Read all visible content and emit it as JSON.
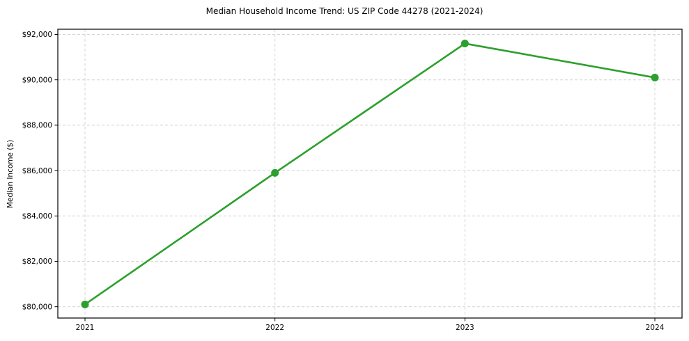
{
  "title": "Median Household Income Trend: US ZIP Code 44278 (2021-2024)",
  "chart_data": {
    "type": "line",
    "title": "Median Household Income Trend: US ZIP Code 44278 (2021-2024)",
    "xlabel": "",
    "ylabel": "Median Income ($)",
    "x": [
      2021,
      2022,
      2023,
      2024
    ],
    "xtick_labels": [
      "2021",
      "2022",
      "2023",
      "2024"
    ],
    "series": [
      {
        "name": "Median Household Income",
        "values": [
          80100,
          85900,
          91600,
          90100
        ]
      }
    ],
    "ylim": [
      79500,
      92230
    ],
    "yticks": [
      80000,
      82000,
      84000,
      86000,
      88000,
      90000,
      92000
    ],
    "ytick_labels": [
      "$80,000",
      "$82,000",
      "$84,000",
      "$86,000",
      "$88,000",
      "$90,000",
      "$92,000"
    ],
    "grid": true,
    "grid_style": "dashed",
    "legend_position": "none"
  },
  "colors": {
    "line": "#2ca02c",
    "marker": "#2ca02c",
    "grid": "#d4d4d4",
    "axis": "#000000",
    "tick_text": "#000000",
    "background": "#ffffff"
  }
}
